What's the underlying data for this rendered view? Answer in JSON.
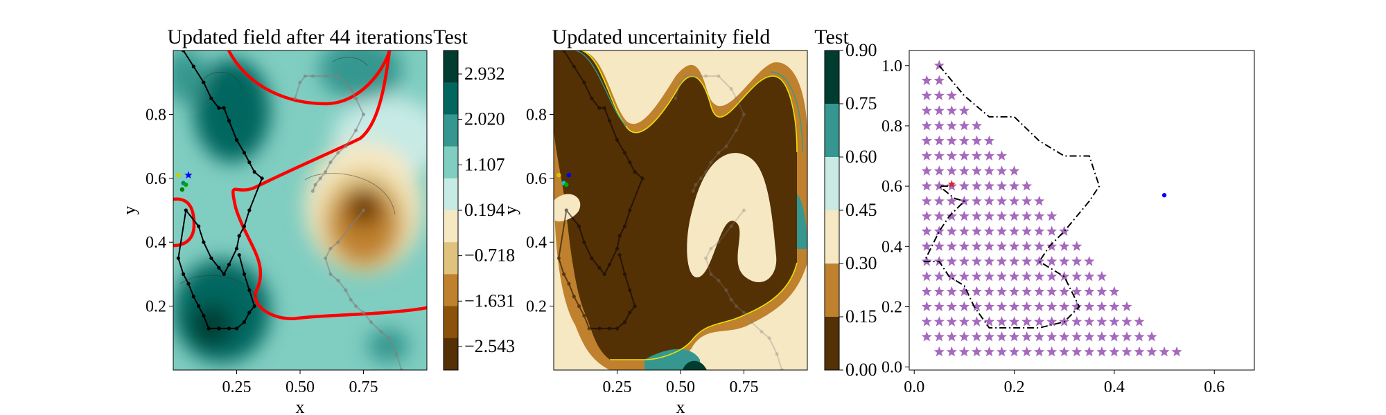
{
  "chart_data": [
    {
      "type": "heatmap",
      "title": "Updated field after 44 iterations",
      "xlabel": "x",
      "ylabel": "y",
      "xlim": [
        0.0,
        1.0
      ],
      "ylim": [
        0.0,
        1.0
      ],
      "xticks": [
        "0.25",
        "0.50",
        "0.75"
      ],
      "yticks": [
        "0.2",
        "0.4",
        "0.6",
        "0.8"
      ],
      "colorbar": {
        "title": "Test",
        "tick_labels": [
          "2.932",
          "2.020",
          "1.107",
          "0.194",
          "−0.718",
          "−1.631",
          "−2.543"
        ],
        "colors": [
          "#003c30",
          "#01665e",
          "#35978f",
          "#80cdc1",
          "#c7eae5",
          "#f6e8c3",
          "#dfc27d",
          "#bf812d",
          "#8c510a",
          "#543005"
        ]
      },
      "threshold_contour_color": "#ff0000",
      "paths": [
        {
          "color": "#000000",
          "x": [
            0.04,
            0.08,
            0.12,
            0.15,
            0.18,
            0.2,
            0.22,
            0.25,
            0.28,
            0.3,
            0.32,
            0.35,
            0.3,
            0.28,
            0.26,
            0.25,
            0.22,
            0.2,
            0.18,
            0.15,
            0.12,
            0.1,
            0.05,
            0.02,
            0.04,
            0.06,
            0.08,
            0.1,
            0.12,
            0.14,
            0.18,
            0.22,
            0.25,
            0.28,
            0.3,
            0.32,
            0.3,
            0.28,
            0.26
          ],
          "y": [
            1.0,
            0.95,
            0.9,
            0.85,
            0.82,
            0.82,
            0.78,
            0.72,
            0.68,
            0.65,
            0.62,
            0.6,
            0.5,
            0.45,
            0.42,
            0.38,
            0.33,
            0.3,
            0.32,
            0.35,
            0.4,
            0.45,
            0.5,
            0.35,
            0.3,
            0.27,
            0.23,
            0.2,
            0.17,
            0.13,
            0.13,
            0.13,
            0.13,
            0.15,
            0.18,
            0.2,
            0.25,
            0.3,
            0.36
          ]
        },
        {
          "color": "#808080",
          "x": [
            0.48,
            0.5,
            0.52,
            0.55,
            0.6,
            0.65,
            0.7,
            0.72,
            0.75,
            0.72,
            0.68,
            0.65,
            0.62,
            0.6,
            0.58,
            0.56,
            0.55
          ],
          "y": [
            0.85,
            0.9,
            0.92,
            0.92,
            0.92,
            0.92,
            0.88,
            0.85,
            0.8,
            0.75,
            0.7,
            0.68,
            0.65,
            0.62,
            0.6,
            0.58,
            0.56
          ]
        },
        {
          "color": "#808080",
          "x": [
            0.75,
            0.7,
            0.65,
            0.62,
            0.6,
            0.62,
            0.65,
            0.68,
            0.7,
            0.72,
            0.75,
            0.78,
            0.82,
            0.85,
            0.88,
            0.9
          ],
          "y": [
            0.5,
            0.45,
            0.4,
            0.38,
            0.35,
            0.3,
            0.28,
            0.25,
            0.22,
            0.2,
            0.18,
            0.15,
            0.12,
            0.1,
            0.05,
            0.0
          ]
        }
      ],
      "markers": [
        {
          "x": 0.06,
          "y": 0.61,
          "color": "#0000ff",
          "symbol": "star"
        },
        {
          "x": 0.02,
          "y": 0.61,
          "color": "#cccc00",
          "symbol": "dot"
        },
        {
          "x": 0.04,
          "y": 0.585,
          "color": "#008080",
          "symbol": "dot"
        },
        {
          "x": 0.05,
          "y": 0.58,
          "color": "#00aa00",
          "symbol": "dot"
        },
        {
          "x": 0.035,
          "y": 0.565,
          "color": "#008000",
          "symbol": "dot"
        }
      ]
    },
    {
      "type": "heatmap",
      "title": "Updated uncertainity field",
      "xlabel": "x",
      "ylabel": "y",
      "xlim": [
        0.0,
        1.0
      ],
      "ylim": [
        0.0,
        1.0
      ],
      "xticks": [
        "0.25",
        "0.50",
        "0.75"
      ],
      "yticks": [
        "0.2",
        "0.4",
        "0.6",
        "0.8"
      ],
      "colorbar": {
        "title": "Test",
        "tick_labels": [
          "0.90",
          "0.75",
          "0.60",
          "0.45",
          "0.30",
          "0.15",
          "0.00"
        ],
        "colors": [
          "#003c30",
          "#35978f",
          "#c7eae5",
          "#f6e8c3",
          "#bf812d",
          "#543005"
        ]
      },
      "markers": [
        {
          "x": 0.06,
          "y": 0.61,
          "color": "#0000ff",
          "symbol": "dot"
        },
        {
          "x": 0.02,
          "y": 0.61,
          "color": "#cccc00",
          "symbol": "dot"
        },
        {
          "x": 0.04,
          "y": 0.585,
          "color": "#00cccc",
          "symbol": "dot"
        },
        {
          "x": 0.05,
          "y": 0.58,
          "color": "#00aa00",
          "symbol": "dot"
        }
      ]
    },
    {
      "type": "scatter",
      "xlim": [
        -0.01,
        0.68
      ],
      "ylim": [
        -0.01,
        1.05
      ],
      "xticks": [
        0.0,
        0.2,
        0.4,
        0.6
      ],
      "xtick_labels": [
        "0.0",
        "0.2",
        "0.4",
        "0.6"
      ],
      "yticks": [
        0.0,
        0.2,
        0.4,
        0.6,
        0.8,
        1.0
      ],
      "ytick_labels": [
        "0.0",
        "0.2",
        "0.4",
        "0.6",
        "0.8",
        "1.0"
      ],
      "grid": false,
      "candidate_points": {
        "marker": "star",
        "color": "#9b59b6",
        "row_y": [
          1.0,
          0.95,
          0.9,
          0.85,
          0.8,
          0.75,
          0.7,
          0.65,
          0.6,
          0.55,
          0.5,
          0.45,
          0.4,
          0.35,
          0.3,
          0.25,
          0.2,
          0.15,
          0.1,
          0.05
        ],
        "row_count": [
          1,
          2,
          3,
          4,
          5,
          6,
          7,
          8,
          9,
          10,
          11,
          12,
          13,
          14,
          15,
          16,
          17,
          18,
          19,
          20
        ],
        "row_x_start": [
          0.05,
          0.025,
          0.025,
          0.025,
          0.025,
          0.025,
          0.025,
          0.025,
          0.025,
          0.025,
          0.025,
          0.025,
          0.025,
          0.025,
          0.025,
          0.025,
          0.025,
          0.025,
          0.025,
          0.025
        ],
        "row_x_step": 0.025,
        "bottom_row_x_start": 0.05
      },
      "boundary_path": {
        "style": "dash-dot",
        "color": "#000000",
        "x": [
          0.05,
          0.1,
          0.15,
          0.2,
          0.25,
          0.3,
          0.35,
          0.37,
          0.35,
          0.3,
          0.27,
          0.25,
          0.3,
          0.33,
          0.3,
          0.25,
          0.2,
          0.15,
          0.12,
          0.1,
          0.07,
          0.05,
          0.02,
          0.05,
          0.07,
          0.1,
          0.08,
          0.05,
          0.07
        ],
        "y": [
          1.0,
          0.9,
          0.83,
          0.83,
          0.75,
          0.7,
          0.7,
          0.6,
          0.55,
          0.45,
          0.4,
          0.35,
          0.3,
          0.2,
          0.15,
          0.13,
          0.13,
          0.13,
          0.2,
          0.27,
          0.3,
          0.35,
          0.35,
          0.45,
          0.5,
          0.55,
          0.56,
          0.6,
          0.6
        ]
      },
      "markers": [
        {
          "x": 0.075,
          "y": 0.607,
          "color": "#d62728",
          "symbol": "star"
        },
        {
          "x": 0.5,
          "y": 0.57,
          "color": "#0000ff",
          "symbol": "dot"
        }
      ]
    }
  ]
}
